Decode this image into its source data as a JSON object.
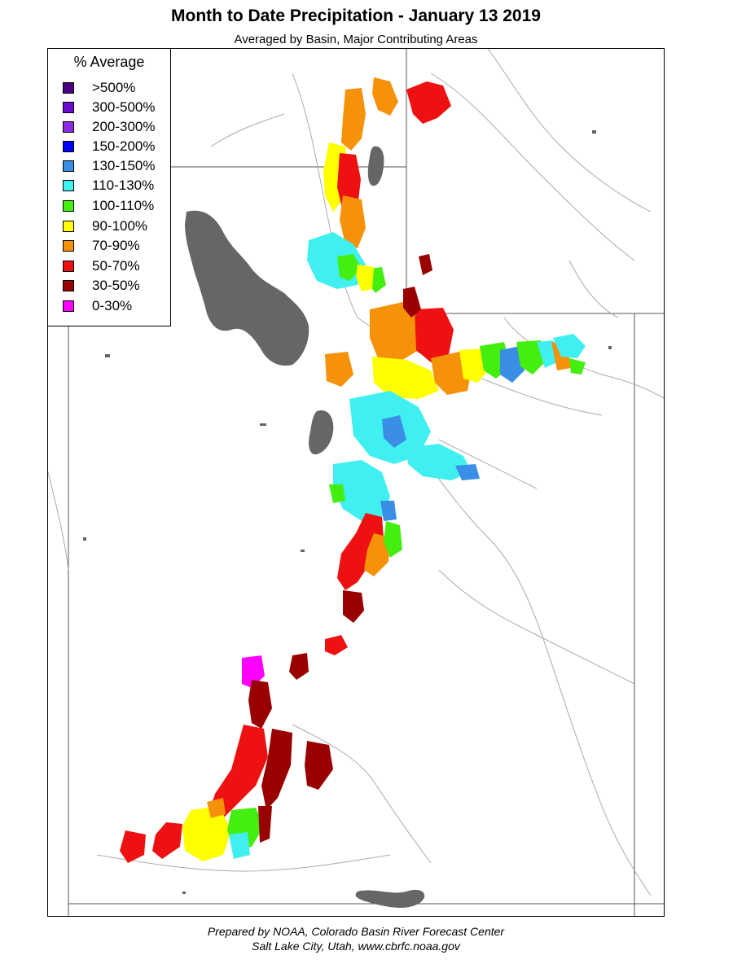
{
  "header": {
    "title": "Month to Date Precipitation - January 13 2019",
    "subtitle": "Averaged by Basin, Major Contributing Areas"
  },
  "legend": {
    "title": "% Average",
    "items": [
      {
        "label": ">500%",
        "color": "#4b0082"
      },
      {
        "label": "300-500%",
        "color": "#6a0dcf"
      },
      {
        "label": "200-300%",
        "color": "#8a2be2"
      },
      {
        "label": "150-200%",
        "color": "#0000ff"
      },
      {
        "label": "130-150%",
        "color": "#3a8ee6"
      },
      {
        "label": "110-130%",
        "color": "#40f0f0"
      },
      {
        "label": "100-110%",
        "color": "#44ee11"
      },
      {
        "label": "90-100%",
        "color": "#ffff00"
      },
      {
        "label": "70-90%",
        "color": "#f5920a"
      },
      {
        "label": "50-70%",
        "color": "#ee1111"
      },
      {
        "label": "30-50%",
        "color": "#990000"
      },
      {
        "label": "0-30%",
        "color": "#ff00ff"
      }
    ]
  },
  "map": {
    "lake_color": "#666666",
    "boundary_color": "#555555",
    "river_color": "#aaaaaa"
  },
  "footer": {
    "line1": "Prepared by NOAA, Colorado Basin River Forecast Center",
    "line2": "Salt Lake City, Utah, www.cbrfc.noaa.gov"
  }
}
